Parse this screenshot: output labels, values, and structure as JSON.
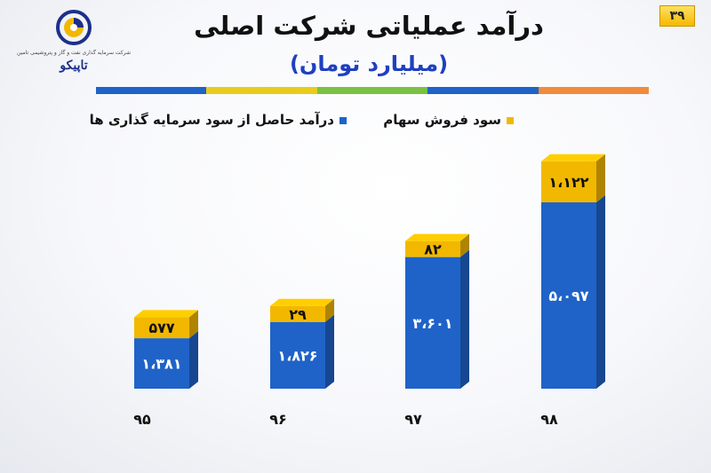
{
  "page_number": "۳۹",
  "logo": {
    "subtitle": "شرکت سرمایه گذاری نفت و گاز و پتروشیمی تامین",
    "name": "تاپیکو"
  },
  "colors": {
    "investment": "#1f63c8",
    "stock_sale": "#f2b800",
    "divider": [
      "#1f63c8",
      "#e8cc1a",
      "#7bc143",
      "#1f63c8",
      "#f28a3c"
    ]
  },
  "chart_data": {
    "type": "bar",
    "stacked": true,
    "title": "درآمد عملیاتی شرکت اصلی",
    "subtitle": "(میلیارد تومان)",
    "categories": [
      "۹۵",
      "۹۶",
      "۹۷",
      "۹۸"
    ],
    "series": [
      {
        "name": "درآمد حاصل از سود سرمایه گذاری ها",
        "values": [
          1381,
          1826,
          3601,
          5097
        ],
        "labels": [
          "۱،۳۸۱",
          "۱،۸۲۶",
          "۳،۶۰۱",
          "۵،۰۹۷"
        ]
      },
      {
        "name": "سود فروش سهام",
        "values": [
          577,
          29,
          82,
          1122
        ],
        "labels": [
          "۵۷۷",
          "۲۹",
          "۸۲",
          "۱،۱۲۲"
        ]
      }
    ],
    "legend_position": "top",
    "grid": false
  }
}
